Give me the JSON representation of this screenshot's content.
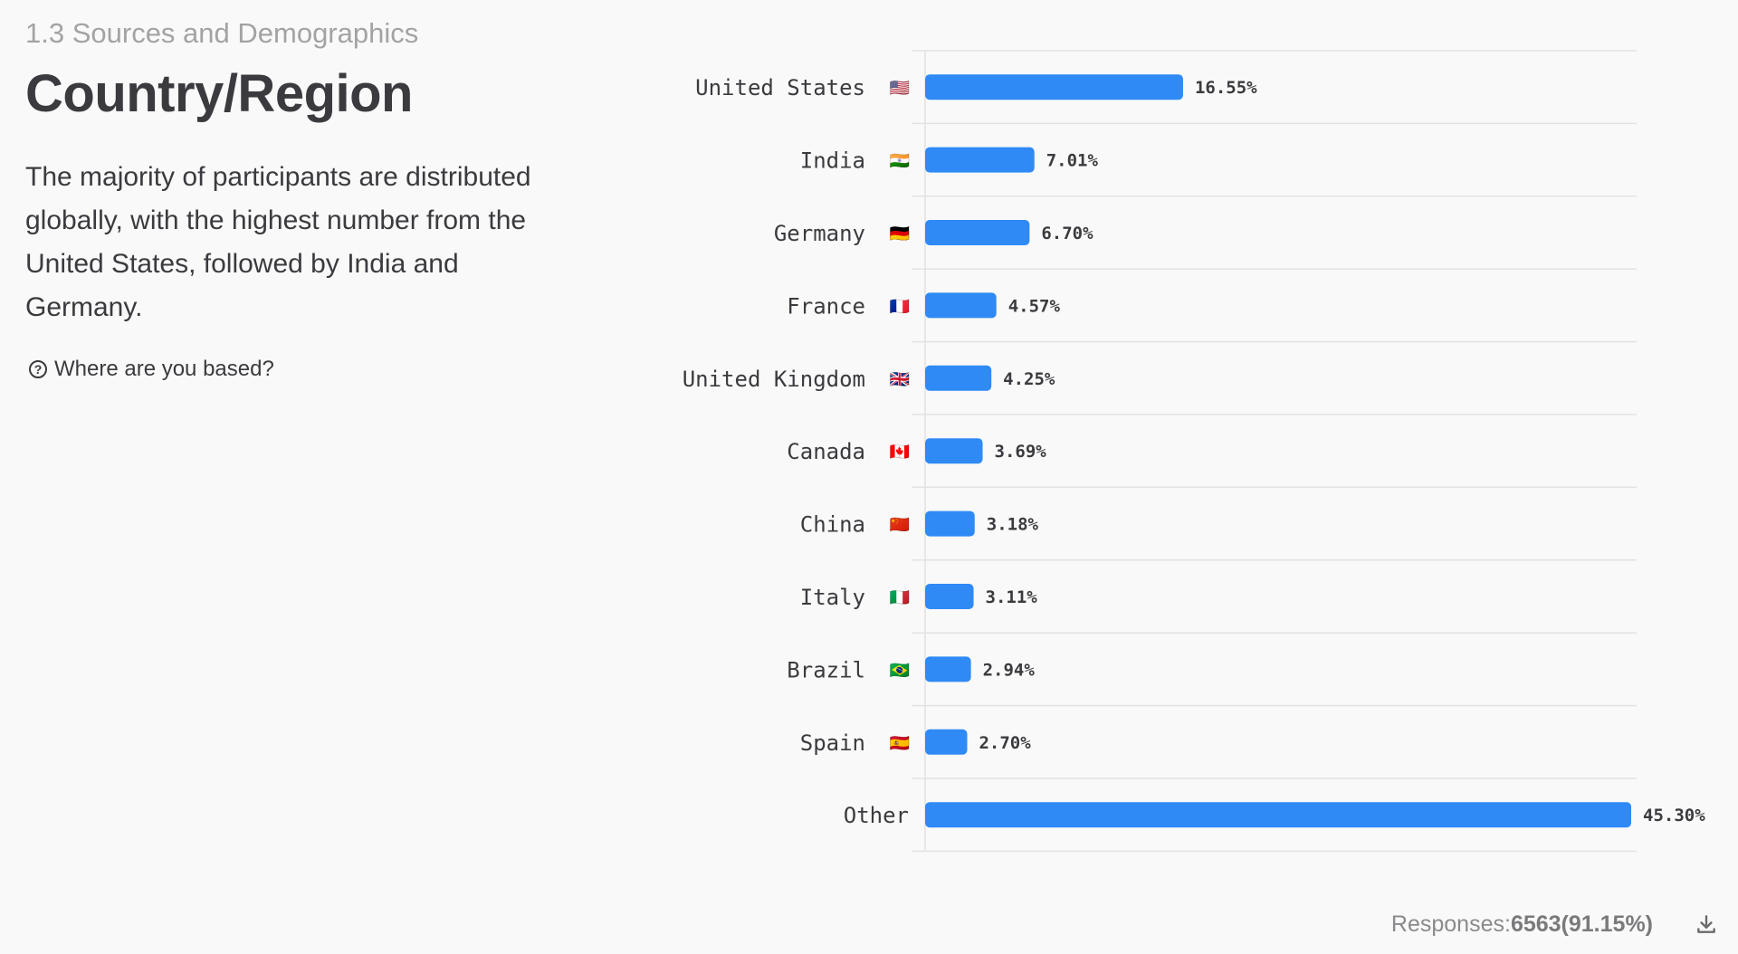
{
  "header": {
    "section": "1.3 Sources and Demographics",
    "title": "Country/Region",
    "description": "The majority of participants are distributed globally, with the highest number from the United States, followed by India and Germany.",
    "question": "Where are you based?"
  },
  "footer": {
    "responses_label": "Responses:",
    "responses_value": "6563(91.15%)"
  },
  "icons": {
    "question": "question-circle-icon",
    "download": "download-icon"
  },
  "colors": {
    "bar": "#2f8af5",
    "grid": "#e2e2e2"
  },
  "chart_data": {
    "type": "bar",
    "orientation": "horizontal",
    "categories": [
      "United States",
      "India",
      "Germany",
      "France",
      "United Kingdom",
      "Canada",
      "China",
      "Italy",
      "Brazil",
      "Spain",
      "Other"
    ],
    "values": [
      16.55,
      7.01,
      6.7,
      4.57,
      4.25,
      3.69,
      3.18,
      3.11,
      2.94,
      2.7,
      45.3
    ],
    "value_labels": [
      "16.55%",
      "7.01%",
      "6.70%",
      "4.57%",
      "4.25%",
      "3.69%",
      "3.18%",
      "3.11%",
      "2.94%",
      "2.70%",
      "45.30%"
    ],
    "flags": [
      "🇺🇸",
      "🇮🇳",
      "🇩🇪",
      "🇫🇷",
      "🇬🇧",
      "🇨🇦",
      "🇨🇳",
      "🇮🇹",
      "🇧🇷",
      "🇪🇸",
      ""
    ],
    "xlim": [
      0,
      45.3
    ],
    "grid": true,
    "title": "",
    "xlabel": "",
    "ylabel": ""
  }
}
